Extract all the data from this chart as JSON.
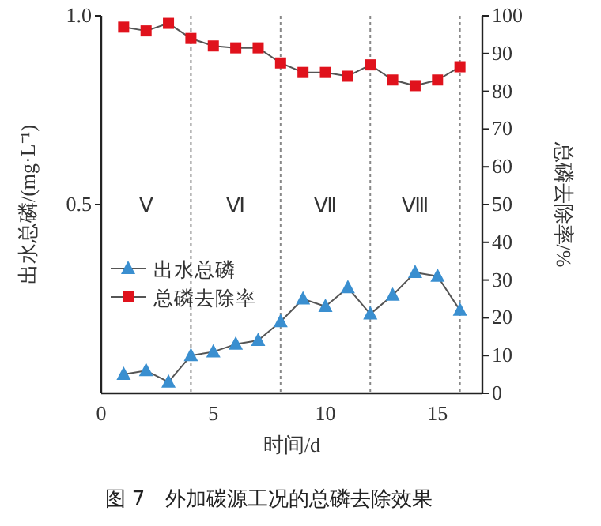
{
  "chart_data": {
    "type": "line",
    "title": "图 7　外加碳源工况的总磷去除效果",
    "xlabel": "时间/d",
    "ylabel": "出水总磷/(mg·L⁻¹)",
    "y2label": "总磷去除率/%",
    "x": [
      1,
      2,
      3,
      4,
      5,
      6,
      7,
      8,
      9,
      10,
      11,
      12,
      13,
      14,
      15,
      16
    ],
    "series": [
      {
        "name": "出水总磷",
        "color": "#3a8fd0",
        "marker": "triangle",
        "values": [
          0.05,
          0.06,
          0.03,
          0.1,
          0.11,
          0.13,
          0.14,
          0.19,
          0.25,
          0.23,
          0.28,
          0.21,
          0.26,
          0.32,
          0.31,
          0.22
        ]
      },
      {
        "name": "总磷去除率",
        "color": "#e0121c",
        "marker": "square",
        "axis": "y2",
        "values": [
          97,
          96,
          98,
          94,
          92,
          91.5,
          91.5,
          87.5,
          85,
          85,
          84,
          87,
          83,
          81.5,
          83,
          86.5
        ]
      }
    ],
    "xlim": [
      0,
      17
    ],
    "xticks": [
      0,
      5,
      10,
      15
    ],
    "ylim": [
      0,
      1
    ],
    "yticks": [
      {
        "value": 0.5,
        "label": "0.5"
      },
      {
        "value": 1,
        "label": "1.0"
      }
    ],
    "y2lim": [
      0,
      100
    ],
    "y2ticks": [
      0,
      10,
      20,
      30,
      40,
      50,
      60,
      70,
      80,
      90,
      100
    ],
    "ref_lines": [
      {
        "axis": "x",
        "value": 4,
        "color": "#888888",
        "line_style": "dotted"
      },
      {
        "axis": "x",
        "value": 8,
        "color": "#888888",
        "line_style": "dotted"
      },
      {
        "axis": "x",
        "value": 12,
        "color": "#888888",
        "line_style": "dotted"
      },
      {
        "axis": "x",
        "value": 16,
        "color": "#888888",
        "line_style": "dotted"
      }
    ],
    "annotations": [
      "Ⅴ",
      "Ⅵ",
      "Ⅶ",
      "Ⅷ"
    ],
    "legend": "left",
    "grid": false
  }
}
